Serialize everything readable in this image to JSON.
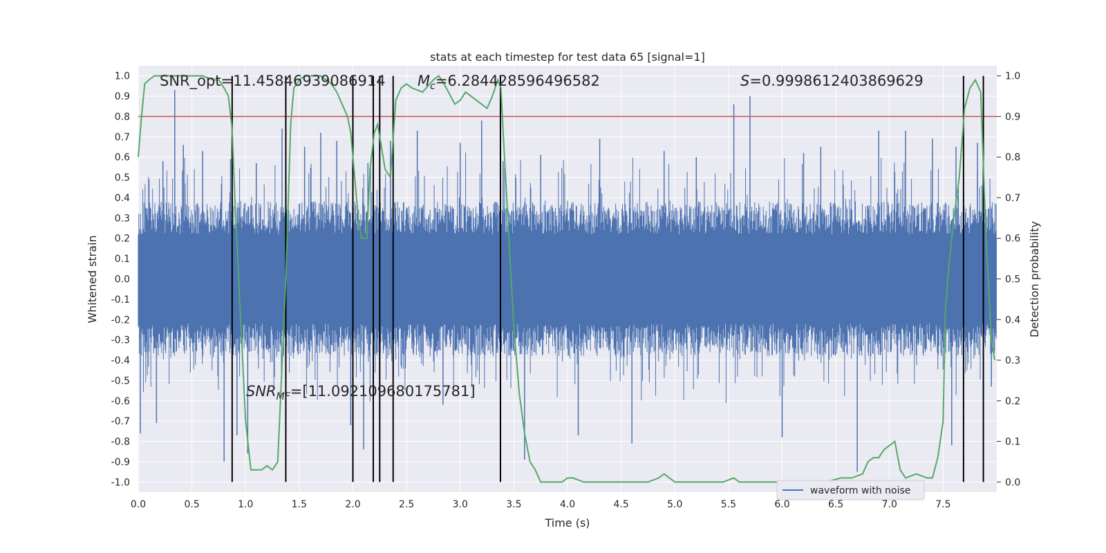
{
  "chart_data": {
    "type": "line",
    "title": "stats at each timestep for test data 65 [signal=1]",
    "xlabel": "Time (s)",
    "ylabel": "Whitened strain",
    "y2label": "Detection probability",
    "xlim": [
      0.0,
      8.0
    ],
    "ylim": [
      -1.05,
      1.05
    ],
    "y2lim": [
      -0.025,
      1.025
    ],
    "xticks": [
      "0.0",
      "0.5",
      "1.0",
      "1.5",
      "2.0",
      "2.5",
      "3.0",
      "3.5",
      "4.0",
      "4.5",
      "5.0",
      "5.5",
      "6.0",
      "6.5",
      "7.0",
      "7.5"
    ],
    "xtick_values": [
      0.0,
      0.5,
      1.0,
      1.5,
      2.0,
      2.5,
      3.0,
      3.5,
      4.0,
      4.5,
      5.0,
      5.5,
      6.0,
      6.5,
      7.0,
      7.5
    ],
    "yticks": [
      "1.0",
      "0.9",
      "0.8",
      "0.7",
      "0.6",
      "0.5",
      "0.4",
      "0.3",
      "0.2",
      "0.1",
      "0.0",
      "-0.1",
      "-0.2",
      "-0.3",
      "-0.4",
      "-0.5",
      "-0.6",
      "-0.7",
      "-0.8",
      "-0.9",
      "-1.0"
    ],
    "ytick_values": [
      1.0,
      0.9,
      0.8,
      0.7,
      0.6,
      0.5,
      0.4,
      0.3,
      0.2,
      0.1,
      0.0,
      -0.1,
      -0.2,
      -0.3,
      -0.4,
      -0.5,
      -0.6,
      -0.7,
      -0.8,
      -0.9,
      -1.0
    ],
    "y2ticks": [
      "1.0",
      "0.9",
      "0.8",
      "0.7",
      "0.6",
      "0.5",
      "0.4",
      "0.3",
      "0.2",
      "0.1",
      "0.0"
    ],
    "y2tick_values": [
      1.0,
      0.9,
      0.8,
      0.7,
      0.6,
      0.5,
      0.4,
      0.3,
      0.2,
      0.1,
      0.0
    ],
    "annotations": {
      "snr_opt": "SNR_opt=11.45846939086914",
      "mc": "=6.284428596496582",
      "s": "=0.9998612403869629",
      "snr_mf": "=[11.092109680175781]"
    },
    "threshold": 0.9,
    "vertical_lines": [
      0.875,
      1.375,
      2.0,
      2.19,
      2.25,
      2.375,
      3.375,
      7.69,
      7.875
    ],
    "series": [
      {
        "name": "waveform with noise",
        "color": "#4c72b0",
        "note": "dense noise trace, envelope approx ±0.3 with spikes up to ±0.93",
        "spikes": [
          [
            0.02,
            -0.76
          ],
          [
            0.1,
            0.49
          ],
          [
            0.17,
            -0.71
          ],
          [
            0.23,
            0.58
          ],
          [
            0.34,
            0.93
          ],
          [
            0.42,
            0.66
          ],
          [
            0.6,
            0.63
          ],
          [
            0.8,
            -0.9
          ],
          [
            0.86,
            0.59
          ],
          [
            0.92,
            -0.77
          ],
          [
            1.02,
            -0.86
          ],
          [
            1.1,
            0.57
          ],
          [
            1.34,
            0.74
          ],
          [
            1.55,
            0.65
          ],
          [
            1.7,
            0.72
          ],
          [
            1.85,
            0.68
          ],
          [
            1.98,
            -0.72
          ],
          [
            2.1,
            -0.84
          ],
          [
            2.14,
            0.57
          ],
          [
            2.35,
            0.68
          ],
          [
            2.6,
            0.73
          ],
          [
            2.84,
            -0.62
          ],
          [
            3.0,
            0.67
          ],
          [
            3.2,
            0.78
          ],
          [
            3.4,
            0.58
          ],
          [
            3.6,
            -0.89
          ],
          [
            3.75,
            0.61
          ],
          [
            4.1,
            -0.77
          ],
          [
            4.3,
            0.69
          ],
          [
            4.6,
            -0.81
          ],
          [
            4.9,
            0.63
          ],
          [
            5.2,
            0.6
          ],
          [
            5.55,
            0.86
          ],
          [
            5.7,
            0.9
          ],
          [
            6.0,
            -0.78
          ],
          [
            6.2,
            0.62
          ],
          [
            6.36,
            0.65
          ],
          [
            6.7,
            -0.95
          ],
          [
            6.9,
            0.73
          ],
          [
            7.15,
            0.73
          ],
          [
            7.4,
            0.69
          ],
          [
            7.58,
            -0.82
          ],
          [
            7.62,
            0.65
          ],
          [
            7.82,
            0.67
          ],
          [
            7.95,
            -0.53
          ]
        ]
      },
      {
        "name": "Detection probability",
        "color": "#55a868",
        "axis": "right",
        "x": [
          0.0,
          0.03,
          0.06,
          0.1,
          0.15,
          0.2,
          0.3,
          0.4,
          0.5,
          0.6,
          0.7,
          0.75,
          0.8,
          0.84,
          0.875,
          0.9,
          0.95,
          1.0,
          1.05,
          1.1,
          1.15,
          1.2,
          1.25,
          1.3,
          1.375,
          1.42,
          1.45,
          1.5,
          1.55,
          1.6,
          1.65,
          1.7,
          1.75,
          1.8,
          1.85,
          1.9,
          1.95,
          1.98,
          2.0,
          2.05,
          2.08,
          2.13,
          2.16,
          2.2,
          2.23,
          2.25,
          2.3,
          2.35,
          2.4,
          2.45,
          2.5,
          2.55,
          2.65,
          2.75,
          2.8,
          2.85,
          2.95,
          3.0,
          3.05,
          3.1,
          3.2,
          3.25,
          3.3,
          3.35,
          3.38,
          3.4,
          3.45,
          3.5,
          3.55,
          3.6,
          3.65,
          3.7,
          3.75,
          3.8,
          3.85,
          3.9,
          3.95,
          4.0,
          4.05,
          4.15,
          4.3,
          4.5,
          4.65,
          4.75,
          4.85,
          4.9,
          4.95,
          5.0,
          5.1,
          5.25,
          5.45,
          5.55,
          5.6,
          5.7,
          5.85,
          6.0,
          6.2,
          6.4,
          6.55,
          6.65,
          6.75,
          6.8,
          6.85,
          6.9,
          6.95,
          7.0,
          7.05,
          7.1,
          7.15,
          7.25,
          7.35,
          7.4,
          7.45,
          7.5,
          7.52,
          7.55,
          7.6,
          7.65,
          7.7,
          7.75,
          7.8,
          7.85,
          7.9,
          7.95,
          7.98
        ],
        "y": [
          0.8,
          0.9,
          0.98,
          0.99,
          1.0,
          1.0,
          1.0,
          1.0,
          1.0,
          1.0,
          0.99,
          0.99,
          0.97,
          0.95,
          0.87,
          0.7,
          0.42,
          0.15,
          0.03,
          0.03,
          0.03,
          0.04,
          0.03,
          0.05,
          0.5,
          0.88,
          0.97,
          0.99,
          1.0,
          1.0,
          1.0,
          1.0,
          0.99,
          0.98,
          0.96,
          0.93,
          0.9,
          0.86,
          0.8,
          0.65,
          0.6,
          0.6,
          0.77,
          0.86,
          0.88,
          0.85,
          0.77,
          0.75,
          0.94,
          0.97,
          0.98,
          0.97,
          0.96,
          0.99,
          1.0,
          0.98,
          0.93,
          0.94,
          0.96,
          0.95,
          0.93,
          0.92,
          0.95,
          0.99,
          0.97,
          0.86,
          0.62,
          0.38,
          0.22,
          0.12,
          0.05,
          0.03,
          0.0,
          0.0,
          0.0,
          0.0,
          0.0,
          0.01,
          0.01,
          0.0,
          0.0,
          0.0,
          0.0,
          0.0,
          0.01,
          0.02,
          0.01,
          0.0,
          0.0,
          0.0,
          0.0,
          0.01,
          0.0,
          0.0,
          0.0,
          0.0,
          0.0,
          0.0,
          0.01,
          0.01,
          0.02,
          0.05,
          0.06,
          0.06,
          0.08,
          0.09,
          0.1,
          0.03,
          0.01,
          0.02,
          0.01,
          0.01,
          0.06,
          0.15,
          0.42,
          0.52,
          0.65,
          0.75,
          0.92,
          0.97,
          0.99,
          0.96,
          0.6,
          0.35,
          0.3
        ]
      }
    ],
    "legend": {
      "label": "waveform with noise",
      "position": "lower-right"
    },
    "background": "#eaeaf2",
    "grid_color": "#ffffff",
    "threshold_color": "#c44e52",
    "vline_color": "#000000"
  }
}
